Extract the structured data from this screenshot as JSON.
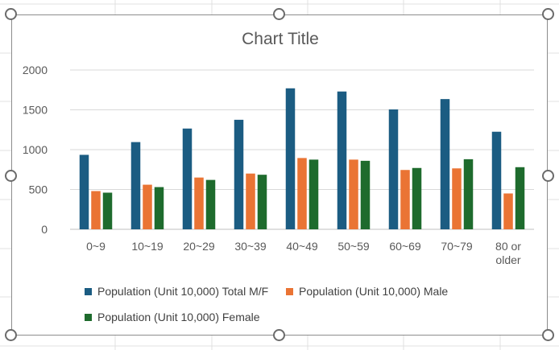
{
  "chart_data": {
    "type": "bar",
    "title": "Chart Title",
    "categories": [
      "0~9",
      "10~19",
      "20~29",
      "30~39",
      "40~49",
      "50~59",
      "60~69",
      "70~79",
      "80 or older"
    ],
    "series": [
      {
        "name": "Population (Unit 10,000) Total M/F",
        "color": "#1b5c82",
        "values": [
          935,
          1095,
          1265,
          1375,
          1770,
          1730,
          1505,
          1635,
          1225
        ]
      },
      {
        "name": "Population (Unit 10,000) Male",
        "color": "#ea7434",
        "values": [
          480,
          560,
          650,
          700,
          895,
          875,
          745,
          765,
          450
        ]
      },
      {
        "name": "Population (Unit 10,000) Female",
        "color": "#1e6b2d",
        "values": [
          460,
          530,
          620,
          685,
          875,
          860,
          770,
          880,
          780
        ]
      }
    ],
    "y_ticks": [
      "0",
      "500",
      "1000",
      "1500",
      "2000"
    ],
    "ylim": [
      0,
      2000
    ],
    "grid": true,
    "legend_position": "bottom"
  }
}
